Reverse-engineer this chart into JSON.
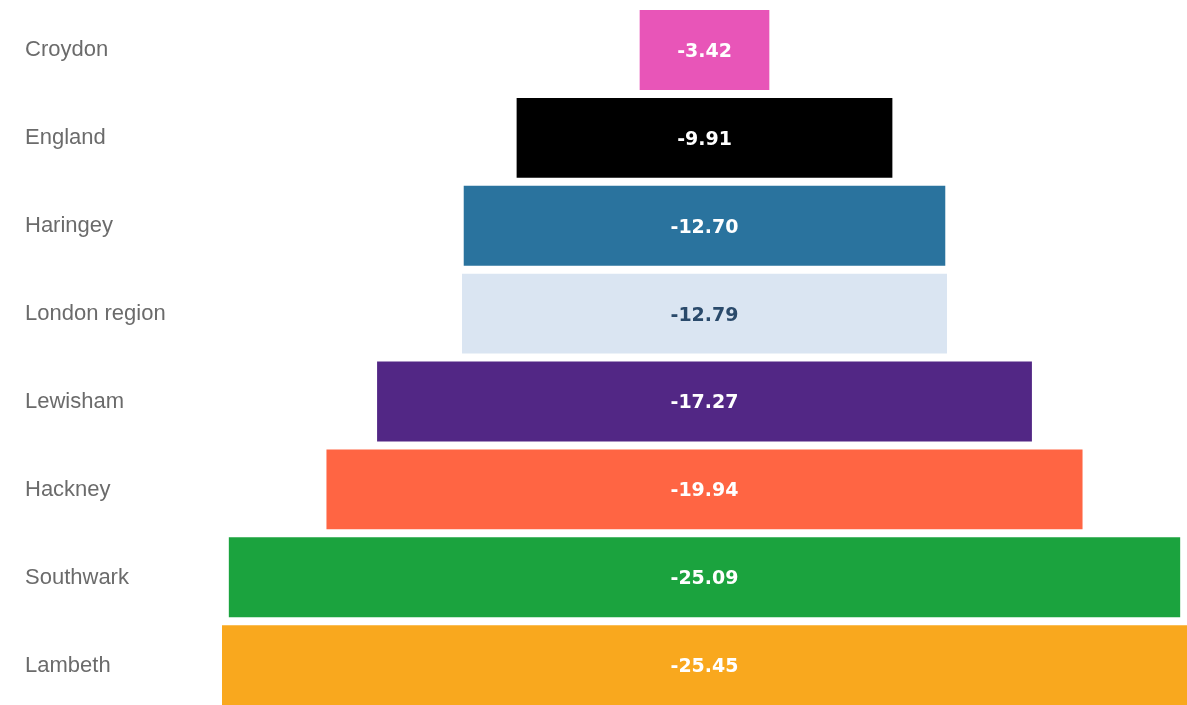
{
  "chart_data": {
    "type": "other",
    "categories": [
      "Croydon",
      "England",
      "Haringey",
      "London region",
      "Lewisham",
      "Hackney",
      "Southwark",
      "Lambeth"
    ],
    "values": [
      -3.42,
      -9.91,
      -12.7,
      -12.79,
      -17.27,
      -19.94,
      -25.09,
      -25.45
    ],
    "value_labels": [
      "-3.42",
      "-9.91",
      "-12.70",
      "-12.79",
      "-17.27",
      "-19.94",
      "-25.09",
      "-25.45"
    ],
    "colors": [
      "#e855b8",
      "#000000",
      "#2a739e",
      "#dae5f2",
      "#522785",
      "#ff6543",
      "#1ba33e",
      "#f9a81e"
    ]
  }
}
